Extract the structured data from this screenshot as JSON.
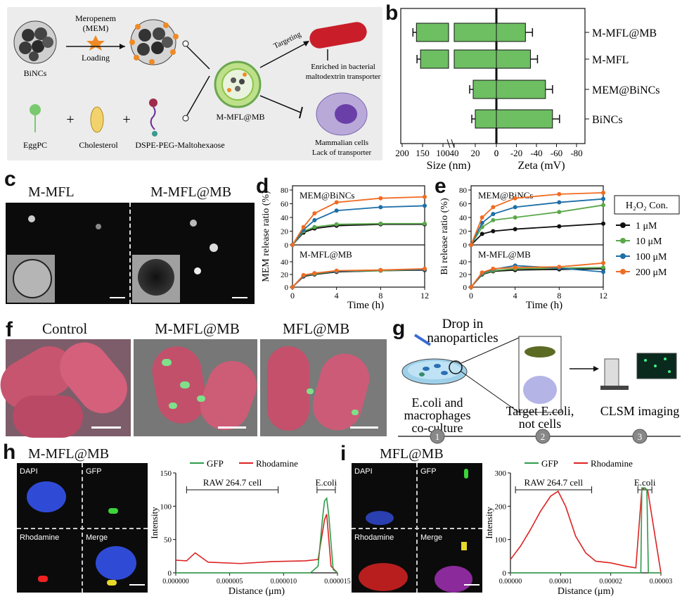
{
  "panels": {
    "a": "a",
    "b": "b",
    "c": "c",
    "d": "d",
    "e": "e",
    "f": "f",
    "g": "g",
    "h": "h",
    "i": "i"
  },
  "a": {
    "mem": "Meropenem\n(MEM)",
    "loading": "Loading",
    "binc": "BiNCs",
    "targeting": "Targeting",
    "enriched": "Enriched in bacterial\nmaltodextrin transporter",
    "mmflmb": "M-MFL@MB",
    "mammalian": "Mammalian cells\nLack of transporter",
    "eggpc": "EggPC",
    "chol": "Cholesterol",
    "dspe": "DSPE-PEG-Maltohexaose",
    "plus": "+"
  },
  "b": {
    "categories": [
      "M-MFL@MB",
      "M-MFL",
      "MEM@BiNCs",
      "BiNCs"
    ],
    "size_ticks": [
      "200",
      "150",
      "100",
      "40",
      "20",
      "0"
    ],
    "zeta_ticks": [
      "-20",
      "-40",
      "-60",
      "-80"
    ],
    "xlabel_size": "Size (nm)",
    "xlabel_zeta": "Zeta (mV)"
  },
  "c": {
    "left": "M-MFL",
    "right": "M-MFL@MB"
  },
  "d": {
    "ylabel": "MEM release ratio (%)",
    "xlabel": "Time (h)",
    "top_label": "MEM@BiNCs",
    "bottom_label": "M-MFL@MB"
  },
  "e": {
    "ylabel": "Bi release ratio (%)",
    "xlabel": "Time (h)",
    "top_label": "MEM@BiNCs",
    "bottom_label": "M-MFL@MB",
    "legend_title": "H₂O₂ Con.",
    "legend": [
      "1 μM",
      "10 μM",
      "100 μM",
      "200 μM"
    ]
  },
  "f": {
    "labels": [
      "Control",
      "M-MFL@MB",
      "MFL@MB"
    ]
  },
  "g": {
    "drop": "Drop in\nnanoparticles",
    "step1": "E.coli and\nmacrophages\nco-culture",
    "step2": "Target E.coli,\nnot cells",
    "step3": "CLSM imaging",
    "nums": [
      "1",
      "2",
      "3"
    ]
  },
  "h": {
    "title": "M-MFL@MB",
    "q": [
      "DAPI",
      "GFP",
      "Rhodamine",
      "Merge"
    ],
    "legend": [
      "GFP",
      "Rhodamine"
    ],
    "raw": "RAW 264.7 cell",
    "ecoli": "E.coli",
    "ylabel": "Intensity",
    "xlabel": "Distance (μm)",
    "xticks": [
      "0.000000",
      "0.000005",
      "0.000010",
      "0.000015"
    ],
    "yticks": [
      "0",
      "50",
      "100",
      "150"
    ]
  },
  "i": {
    "title": "MFL@MB",
    "q": [
      "DAPI",
      "GFP",
      "Rhodamine",
      "Merge"
    ],
    "legend": [
      "GFP",
      "Rhodamine"
    ],
    "raw": "RAW 264.7 cell",
    "ecoli": "E.coli",
    "ylabel": "Intensity",
    "xlabel": "Distance (μm)",
    "xticks": [
      "0.00000",
      "0.00001",
      "0.00002",
      "0.00003"
    ],
    "yticks": [
      "0",
      "100",
      "200",
      "300"
    ]
  },
  "chart_data": [
    {
      "type": "bar",
      "panel": "b-size",
      "xlabel": "Size (nm)",
      "categories": [
        "M-MFL@MB",
        "M-MFL",
        "MEM@BiNCs",
        "BiNCs"
      ],
      "values": [
        165,
        155,
        22,
        20
      ]
    },
    {
      "type": "bar",
      "panel": "b-zeta",
      "xlabel": "Zeta (mV)",
      "categories": [
        "M-MFL@MB",
        "M-MFL",
        "MEM@BiNCs",
        "BiNCs"
      ],
      "values": [
        -29,
        -34,
        -49,
        -56
      ]
    },
    {
      "type": "line",
      "panel": "d-top",
      "label": "MEM@BiNCs",
      "xlabel": "Time (h)",
      "ylabel": "MEM release ratio (%)",
      "ylim": [
        0,
        80
      ],
      "x": [
        0,
        1,
        2,
        4,
        8,
        12
      ],
      "series": [
        {
          "name": "1 μM",
          "color": "#111111",
          "values": [
            0,
            18,
            24,
            28,
            30,
            30
          ]
        },
        {
          "name": "10 μM",
          "color": "#5aa84a",
          "values": [
            0,
            20,
            26,
            30,
            31,
            31
          ]
        },
        {
          "name": "100 μM",
          "color": "#1d6fa8",
          "values": [
            0,
            22,
            36,
            50,
            55,
            57
          ]
        },
        {
          "name": "200 μM",
          "color": "#ef6c22",
          "values": [
            0,
            26,
            46,
            62,
            68,
            70
          ]
        }
      ]
    },
    {
      "type": "line",
      "panel": "d-bottom",
      "label": "M-MFL@MB",
      "xlabel": "Time (h)",
      "ylim": [
        0,
        60
      ],
      "x": [
        0,
        1,
        2,
        4,
        8,
        12
      ],
      "series": [
        {
          "name": "1 μM",
          "color": "#111111",
          "values": [
            0,
            17,
            20,
            24,
            26,
            27
          ]
        },
        {
          "name": "10 μM",
          "color": "#5aa84a",
          "values": [
            0,
            18,
            21,
            25,
            26,
            28
          ]
        },
        {
          "name": "100 μM",
          "color": "#1d6fa8",
          "values": [
            0,
            18,
            22,
            25,
            27,
            28
          ]
        },
        {
          "name": "200 μM",
          "color": "#ef6c22",
          "values": [
            0,
            19,
            22,
            26,
            27,
            29
          ]
        }
      ]
    },
    {
      "type": "line",
      "panel": "e-top",
      "label": "MEM@BiNCs",
      "xlabel": "Time (h)",
      "ylabel": "Bi release ratio (%)",
      "ylim": [
        0,
        80
      ],
      "x": [
        0,
        1,
        2,
        4,
        8,
        12
      ],
      "series": [
        {
          "name": "1 μM",
          "color": "#111111",
          "values": [
            0,
            16,
            20,
            23,
            27,
            31
          ]
        },
        {
          "name": "10 μM",
          "color": "#5aa84a",
          "values": [
            0,
            26,
            36,
            40,
            48,
            58
          ]
        },
        {
          "name": "100 μM",
          "color": "#1d6fa8",
          "values": [
            0,
            32,
            45,
            55,
            62,
            67
          ]
        },
        {
          "name": "200 μM",
          "color": "#ef6c22",
          "values": [
            0,
            40,
            55,
            68,
            74,
            76
          ]
        }
      ]
    },
    {
      "type": "line",
      "panel": "e-bottom",
      "label": "M-MFL@MB",
      "xlabel": "Time (h)",
      "ylim": [
        0,
        60
      ],
      "x": [
        0,
        1,
        2,
        4,
        8,
        12
      ],
      "series": [
        {
          "name": "1 μM",
          "color": "#111111",
          "values": [
            0,
            20,
            25,
            27,
            28,
            29
          ]
        },
        {
          "name": "10 μM",
          "color": "#5aa84a",
          "values": [
            0,
            21,
            26,
            29,
            30,
            31
          ]
        },
        {
          "name": "100 μM",
          "color": "#1d6fa8",
          "values": [
            0,
            22,
            28,
            34,
            30,
            24
          ]
        },
        {
          "name": "200 μM",
          "color": "#ef6c22",
          "values": [
            0,
            23,
            29,
            31,
            32,
            38
          ]
        }
      ]
    },
    {
      "type": "line",
      "panel": "h",
      "xlabel": "Distance (μm)",
      "ylabel": "Intensity",
      "ylim": [
        0,
        150
      ],
      "series": [
        {
          "name": "GFP",
          "color": "#2e9b4a",
          "x": [
            0,
            1.25e-05,
            1.32e-05,
            1.36e-05,
            1.38e-05,
            1.4e-05,
            1.42e-05,
            1.46e-05,
            1.5e-05
          ],
          "values": [
            0,
            0,
            10,
            80,
            108,
            112,
            85,
            5,
            0
          ]
        },
        {
          "name": "Rhodamine",
          "color": "#d22",
          "x": [
            0,
            1e-06,
            1.8e-06,
            3e-06,
            6e-06,
            9e-06,
            1.2e-05,
            1.32e-05,
            1.38e-05,
            1.4e-05,
            1.44e-05,
            1.5e-05
          ],
          "values": [
            19,
            18,
            30,
            16,
            14,
            17,
            18,
            20,
            80,
            88,
            10,
            0
          ]
        }
      ]
    },
    {
      "type": "line",
      "panel": "i",
      "xlabel": "Distance (μm)",
      "ylabel": "Intensity",
      "ylim": [
        0,
        300
      ],
      "series": [
        {
          "name": "GFP",
          "color": "#2e9b4a",
          "x": [
            0,
            2.6e-05,
            2.62e-05,
            2.68e-05,
            2.72e-05,
            2.75e-05,
            3e-05
          ],
          "values": [
            0,
            0,
            255,
            255,
            250,
            0,
            0
          ]
        },
        {
          "name": "Rhodamine",
          "color": "#d22",
          "x": [
            0,
            2e-06,
            4e-06,
            6e-06,
            8e-06,
            9.5e-06,
            1.1e-05,
            1.3e-05,
            1.5e-05,
            1.7e-05,
            2e-05,
            2.3e-05,
            2.5e-05,
            2.62e-05,
            2.68e-05,
            2.74e-05,
            3e-05
          ],
          "values": [
            40,
            80,
            130,
            185,
            230,
            245,
            200,
            110,
            60,
            35,
            30,
            20,
            15,
            250,
            255,
            245,
            0
          ]
        }
      ]
    }
  ]
}
